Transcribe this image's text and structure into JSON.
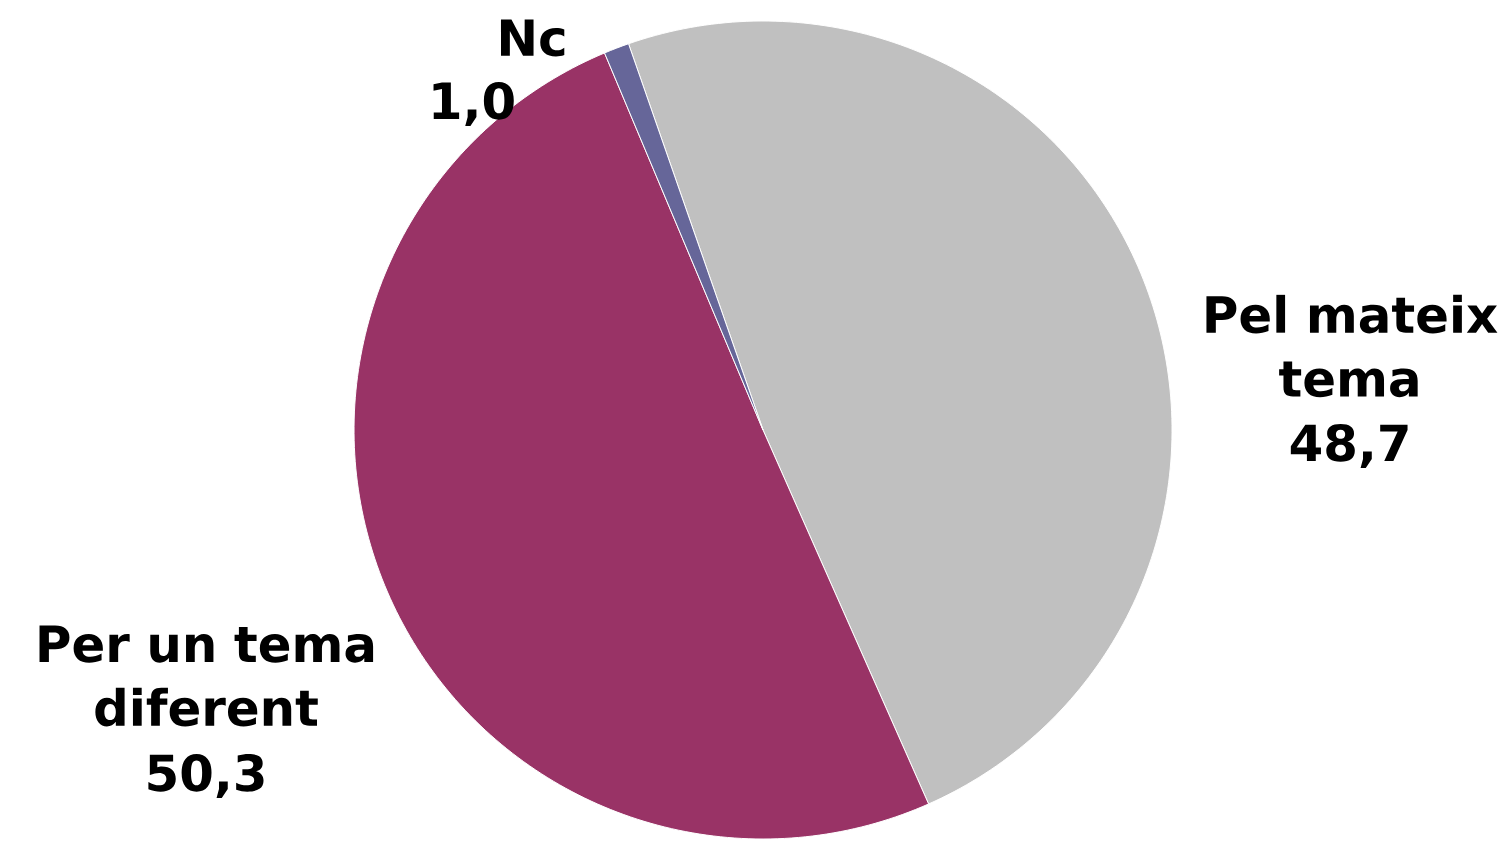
{
  "chart_data": {
    "type": "pie",
    "categories": [
      "Pel mateix tema",
      "Per un tema diferent",
      "Nc"
    ],
    "values": [
      48.7,
      50.3,
      1.0
    ],
    "colors": [
      "#c0c0c0",
      "#993366",
      "#666699"
    ],
    "value_labels": [
      "48,7",
      "50,3",
      "1,0"
    ]
  }
}
